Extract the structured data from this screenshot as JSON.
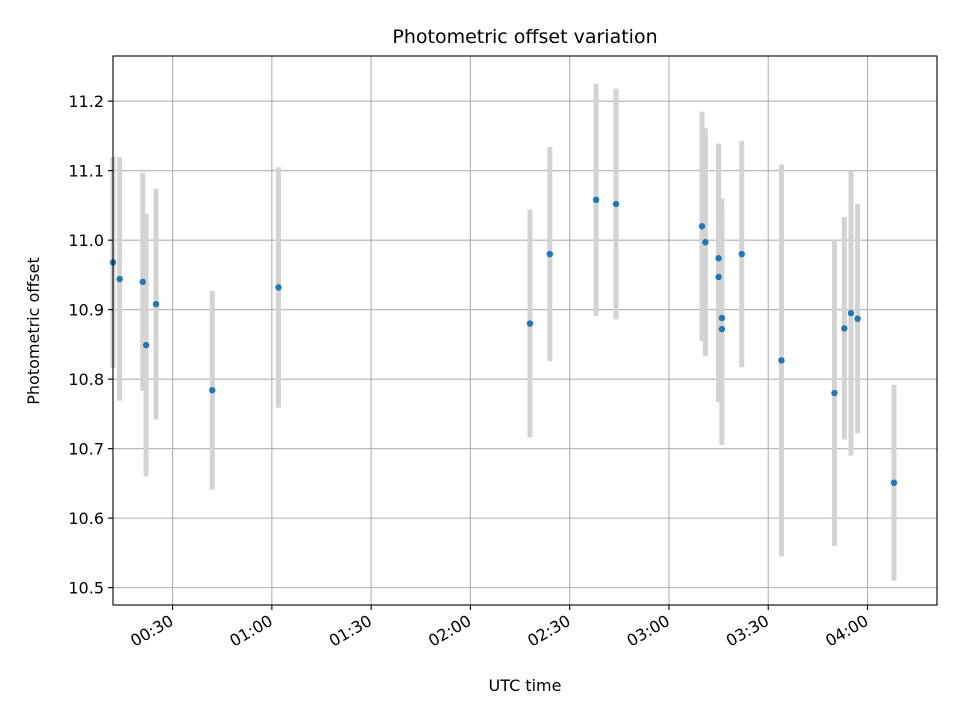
{
  "chart_data": {
    "type": "scatter",
    "title": "Photometric offset variation",
    "xlabel": "UTC time",
    "ylabel": "Photometric offset",
    "x_ticks": [
      "00:30",
      "01:00",
      "01:30",
      "02:00",
      "02:30",
      "03:00",
      "03:30",
      "04:00"
    ],
    "y_ticks": [
      "10.5",
      "10.6",
      "10.7",
      "10.8",
      "10.9",
      "11.0",
      "11.1",
      "11.2"
    ],
    "xlim": [
      "00:12",
      "04:21"
    ],
    "ylim": [
      10.475,
      11.265
    ],
    "grid": true,
    "series": [
      {
        "marker_color": "#1f77b4",
        "errorbar_color": "#d3d3d3",
        "points": [
          {
            "x": "00:12",
            "y": 10.968,
            "yerr": 0.152
          },
          {
            "x": "00:14",
            "y": 10.944,
            "yerr": 0.175
          },
          {
            "x": "00:21",
            "y": 10.94,
            "yerr": 0.157
          },
          {
            "x": "00:22",
            "y": 10.849,
            "yerr": 0.189
          },
          {
            "x": "00:25",
            "y": 10.908,
            "yerr": 0.166
          },
          {
            "x": "00:42",
            "y": 10.784,
            "yerr": 0.143
          },
          {
            "x": "01:02",
            "y": 10.932,
            "yerr": 0.173
          },
          {
            "x": "02:18",
            "y": 10.88,
            "yerr": 0.164
          },
          {
            "x": "02:24",
            "y": 10.98,
            "yerr": 0.154
          },
          {
            "x": "02:38",
            "y": 11.058,
            "yerr": 0.167
          },
          {
            "x": "02:44",
            "y": 11.052,
            "yerr": 0.166
          },
          {
            "x": "03:10",
            "y": 11.02,
            "yerr": 0.165
          },
          {
            "x": "03:11",
            "y": 10.997,
            "yerr": 0.164
          },
          {
            "x": "03:15",
            "y": 10.974,
            "yerr": 0.165
          },
          {
            "x": "03:15",
            "y": 10.947,
            "yerr": 0.18
          },
          {
            "x": "03:16",
            "y": 10.888,
            "yerr": 0.172
          },
          {
            "x": "03:16",
            "y": 10.872,
            "yerr": 0.167
          },
          {
            "x": "03:22",
            "y": 10.98,
            "yerr": 0.163
          },
          {
            "x": "03:34",
            "y": 10.827,
            "yerr": 0.282
          },
          {
            "x": "03:50",
            "y": 10.78,
            "yerr": 0.22
          },
          {
            "x": "03:53",
            "y": 10.873,
            "yerr": 0.16
          },
          {
            "x": "03:55",
            "y": 10.895,
            "yerr": 0.205
          },
          {
            "x": "03:57",
            "y": 10.887,
            "yerr": 0.165
          },
          {
            "x": "04:08",
            "y": 10.651,
            "yerr": 0.141
          }
        ]
      }
    ]
  }
}
